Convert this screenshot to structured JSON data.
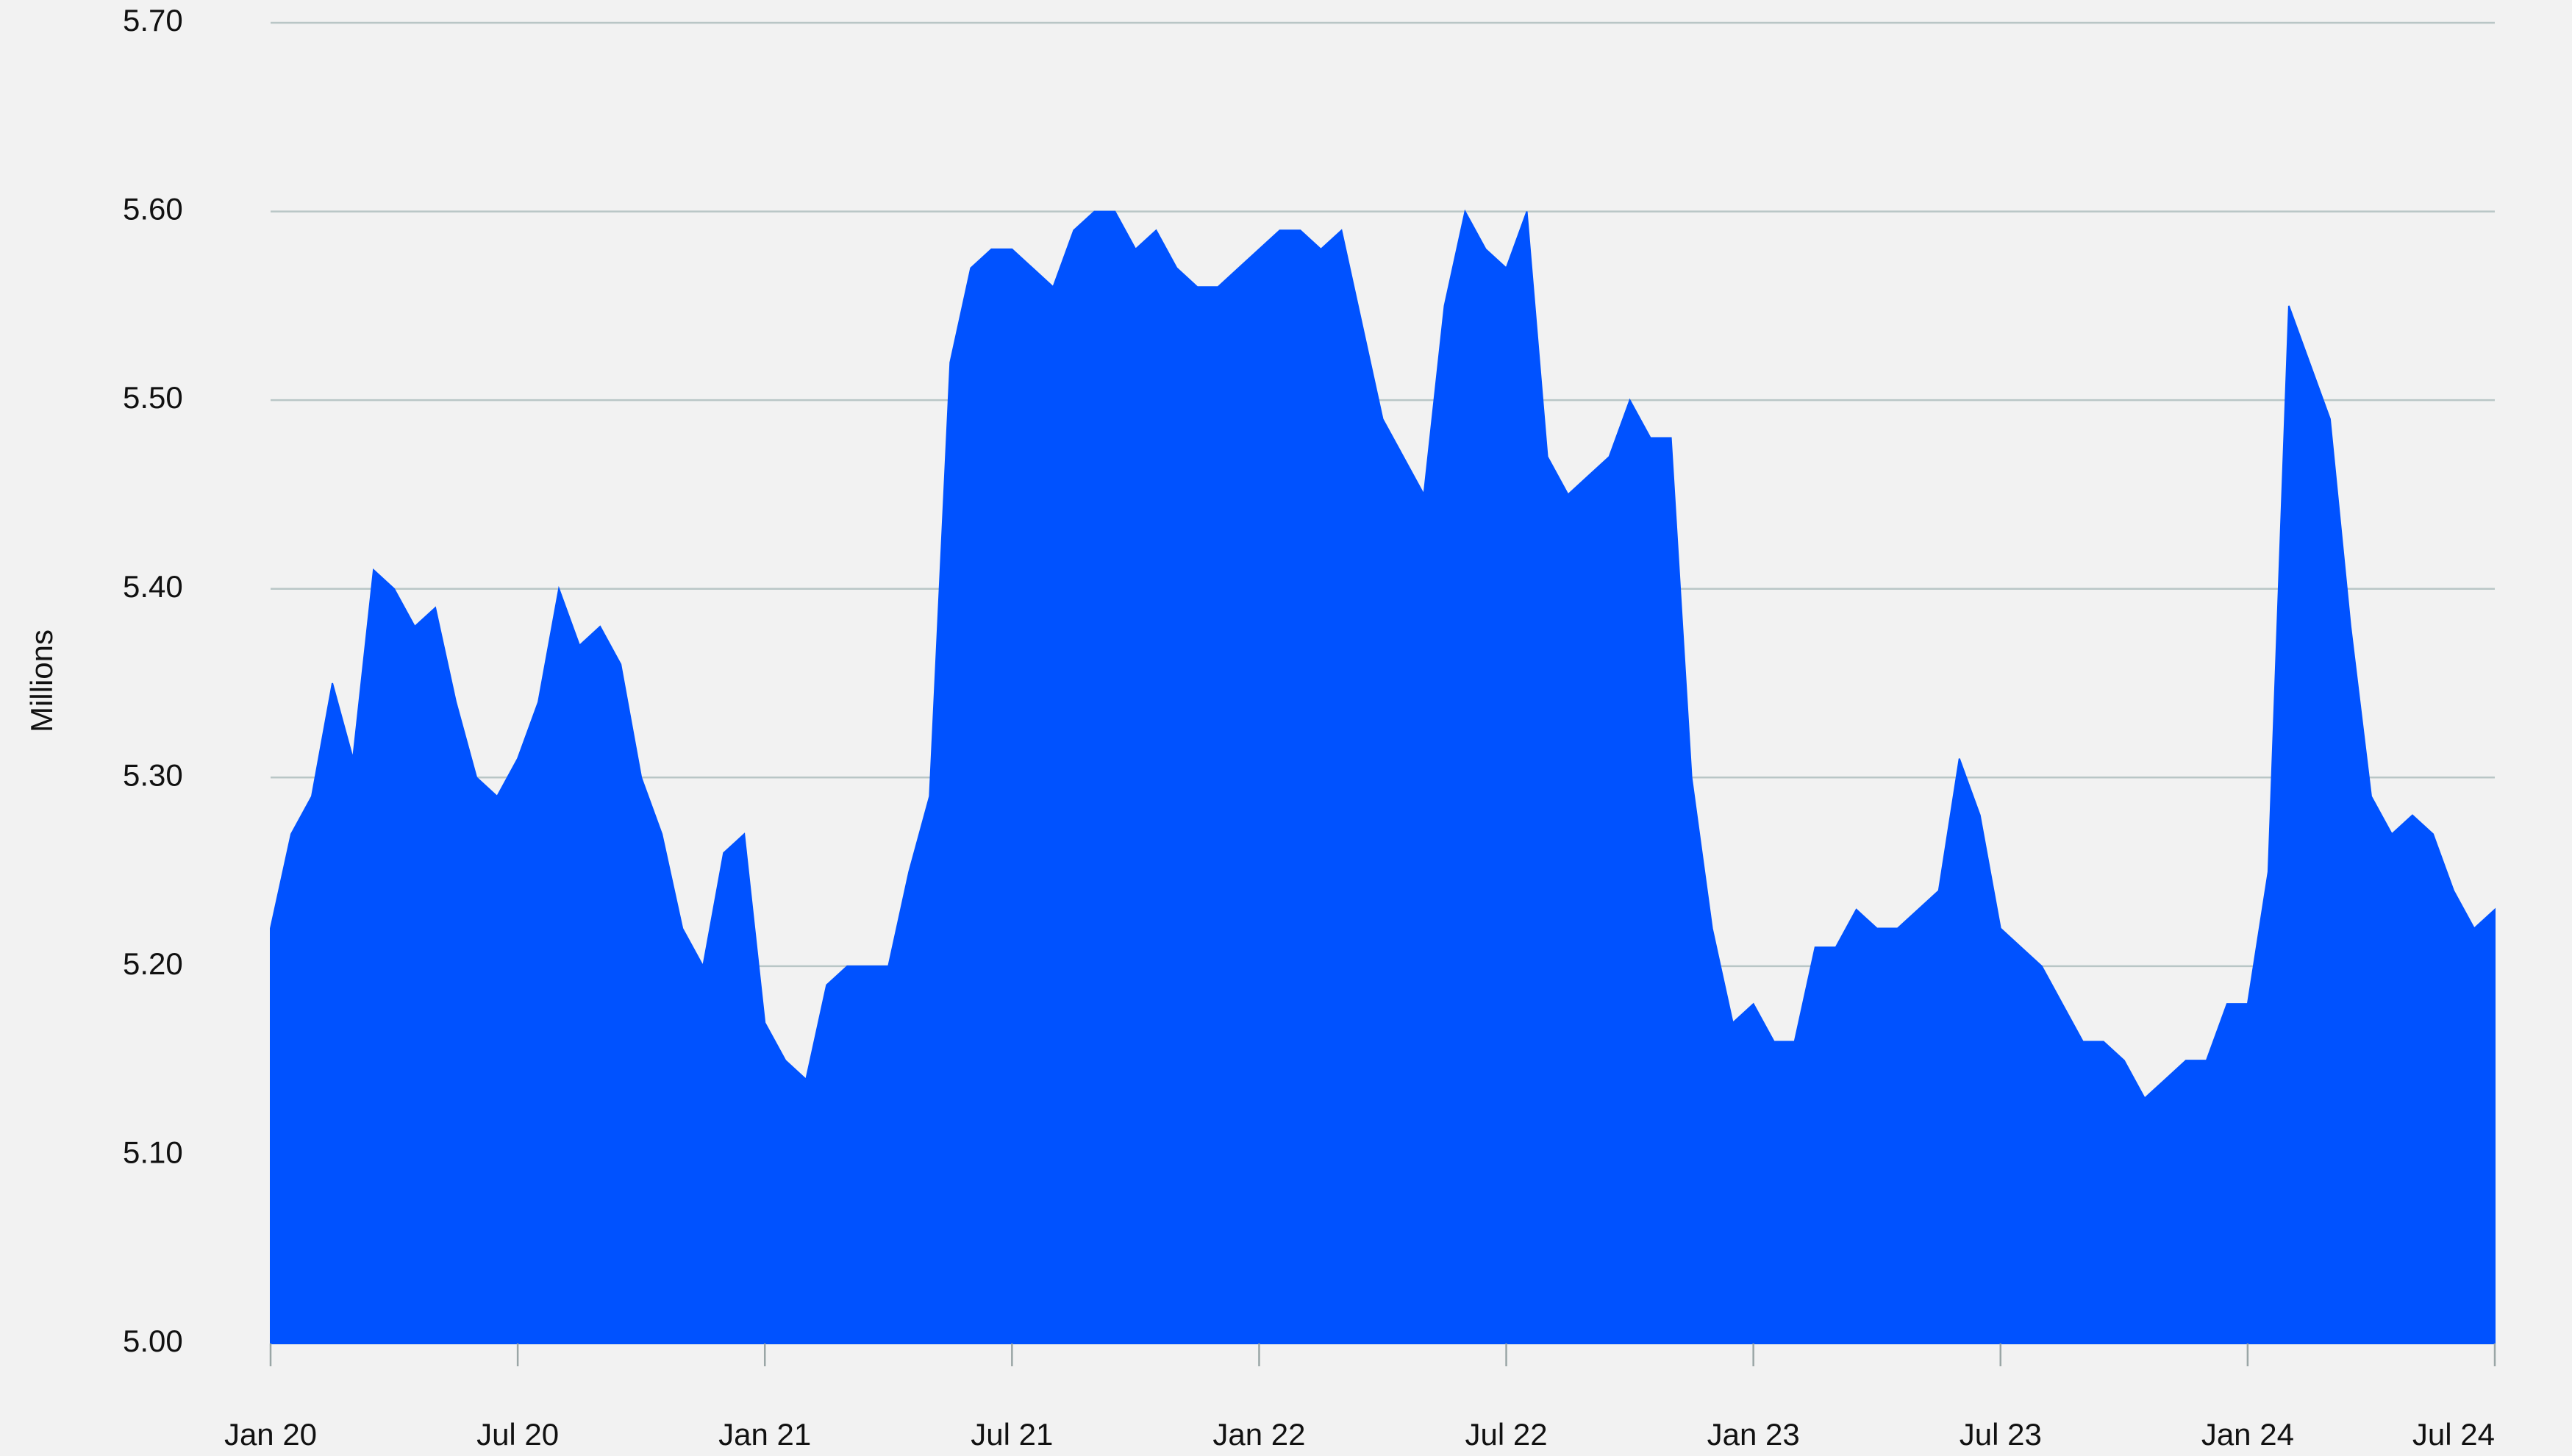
{
  "chart_data": {
    "type": "area",
    "y_label": "Millions",
    "color": "#0052ff",
    "grid": true,
    "ylim": [
      5,
      5.7
    ],
    "yticks": [
      {
        "value": 5,
        "label": "5.00"
      },
      {
        "value": 5.1,
        "label": "5.10"
      },
      {
        "value": 5.2,
        "label": "5.20"
      },
      {
        "value": 5.3,
        "label": "5.30"
      },
      {
        "value": 5.4,
        "label": "5.40"
      },
      {
        "value": 5.5,
        "label": "5.50"
      },
      {
        "value": 5.6,
        "label": "5.60"
      },
      {
        "value": 5.7,
        "label": "5.70"
      }
    ],
    "categories": [
      "Jan 20",
      null,
      null,
      null,
      null,
      null,
      null,
      null,
      null,
      null,
      null,
      null,
      "Jul 20",
      null,
      null,
      null,
      null,
      null,
      null,
      null,
      null,
      null,
      null,
      null,
      "Jan 21",
      null,
      null,
      null,
      null,
      null,
      null,
      null,
      null,
      null,
      null,
      null,
      "Jul 21",
      null,
      null,
      null,
      null,
      null,
      null,
      null,
      null,
      null,
      null,
      null,
      "Jan 22",
      null,
      null,
      null,
      null,
      null,
      null,
      null,
      null,
      null,
      null,
      null,
      "Jul 22",
      null,
      null,
      null,
      null,
      null,
      null,
      null,
      null,
      null,
      null,
      null,
      "Jan 23",
      null,
      null,
      null,
      null,
      null,
      null,
      null,
      null,
      null,
      null,
      null,
      "Jul 23",
      null,
      null,
      null,
      null,
      null,
      null,
      null,
      null,
      null,
      null,
      null,
      "Jan 24",
      null,
      null,
      null,
      null,
      null,
      null,
      null,
      null,
      null,
      null,
      null,
      "Jul 24"
    ],
    "values": [
      5.22,
      5.27,
      5.29,
      5.35,
      5.31,
      5.41,
      5.4,
      5.38,
      5.39,
      5.34,
      5.3,
      5.29,
      5.31,
      5.34,
      5.4,
      5.37,
      5.38,
      5.36,
      5.3,
      5.27,
      5.22,
      5.2,
      5.26,
      5.27,
      5.17,
      5.15,
      5.14,
      5.19,
      5.2,
      5.2,
      5.2,
      5.25,
      5.29,
      5.52,
      5.57,
      5.58,
      5.58,
      5.57,
      5.56,
      5.59,
      5.6,
      5.6,
      5.58,
      5.59,
      5.57,
      5.56,
      5.56,
      5.57,
      5.58,
      5.59,
      5.59,
      5.58,
      5.59,
      5.54,
      5.49,
      5.47,
      5.45,
      5.55,
      5.6,
      5.58,
      5.57,
      5.6,
      5.47,
      5.45,
      5.46,
      5.47,
      5.5,
      5.48,
      5.48,
      5.3,
      5.22,
      5.17,
      5.18,
      5.16,
      5.16,
      5.21,
      5.21,
      5.23,
      5.22,
      5.22,
      5.23,
      5.24,
      5.31,
      5.28,
      5.22,
      5.21,
      5.2,
      5.18,
      5.16,
      5.16,
      5.15,
      5.13,
      5.14,
      5.15,
      5.15,
      5.18,
      5.18,
      5.25,
      5.55,
      5.52,
      5.49,
      5.38,
      5.29,
      5.27,
      5.28,
      5.27,
      5.24,
      5.22,
      5.23
    ]
  }
}
